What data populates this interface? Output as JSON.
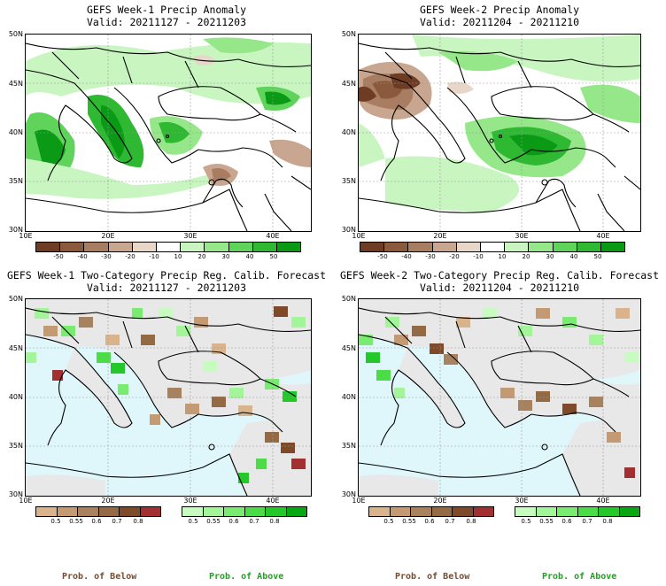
{
  "panels": [
    {
      "title": "GEFS Week-1 Precip Anomaly",
      "valid": "Valid: 20211127 - 20211203"
    },
    {
      "title": "GEFS Week-2 Precip Anomaly",
      "valid": "Valid: 20211204 - 20211210"
    },
    {
      "title": "GEFS Week-1 Two-Category Precip Reg. Calib. Forecast",
      "valid": "Valid: 20211127 - 20211203"
    },
    {
      "title": "GEFS Week-2 Two-Category Precip Reg. Calib. Forecast",
      "valid": "Valid: 20211204 - 20211210"
    }
  ],
  "lat_labels": [
    "50N",
    "45N",
    "40N",
    "35N",
    "30N"
  ],
  "lon_labels": [
    "10E",
    "20E",
    "30E",
    "40E"
  ],
  "anomaly_colorbar": {
    "ticks": [
      "-50",
      "-40",
      "-30",
      "-20",
      "-10",
      "10",
      "20",
      "30",
      "40",
      "50"
    ],
    "colors": [
      "#6e3b23",
      "#8b5a3c",
      "#a97d61",
      "#c9a68f",
      "#e8d6c9",
      "#ffffff",
      "#c8f5c0",
      "#96e68a",
      "#5fd35a",
      "#2fb832",
      "#0a9a16"
    ]
  },
  "below_colorbar": {
    "ticks": [
      "0.5",
      "0.55",
      "0.6",
      "0.7",
      "0.8"
    ],
    "colors": [
      "#d9b38c",
      "#c49a73",
      "#a8825e",
      "#946a44",
      "#7e4a2a",
      "#a33030"
    ]
  },
  "above_colorbar": {
    "ticks": [
      "0.5",
      "0.55",
      "0.6",
      "0.7",
      "0.8"
    ],
    "colors": [
      "#c8fbc0",
      "#a3f59a",
      "#78eb70",
      "#4cdc48",
      "#24c828",
      "#08a812"
    ]
  },
  "legend_labels": {
    "below": "Prob. of Below",
    "above": "Prob. of Above"
  },
  "colors": {
    "sea_prob": "#dff7fb",
    "land_gray": "#e8e8e8",
    "below_text": "#7a4a2a",
    "above_text": "#1fa31f"
  }
}
